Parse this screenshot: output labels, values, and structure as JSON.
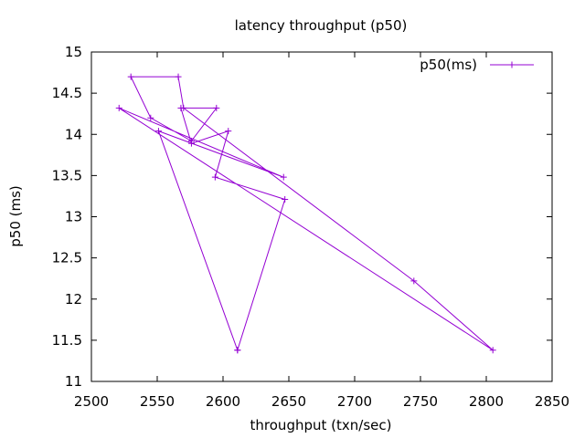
{
  "chart_data": {
    "type": "line",
    "title": "latency throughput (p50)",
    "xlabel": "throughput (txn/sec)",
    "ylabel": "p50 (ms)",
    "xlim": [
      2500,
      2850
    ],
    "ylim": [
      11,
      15
    ],
    "xticks": [
      "2500",
      "2550",
      "2600",
      "2650",
      "2700",
      "2750",
      "2800",
      "2850"
    ],
    "yticks": [
      "11",
      "11.5",
      "12",
      "12.5",
      "13",
      "13.5",
      "14",
      "14.5",
      "15"
    ],
    "xtick_values": [
      2500,
      2550,
      2600,
      2650,
      2700,
      2750,
      2800,
      2850
    ],
    "ytick_values": [
      11,
      11.5,
      12,
      12.5,
      13,
      13.5,
      14,
      14.5,
      15
    ],
    "grid": false,
    "legend_position": "top-right",
    "series": [
      {
        "name": "p50(ms)",
        "color": "#9400d3",
        "marker": "plus",
        "points": [
          [
            2611,
            11.38
          ],
          [
            2647,
            13.21
          ],
          [
            2594,
            13.48
          ],
          [
            2604,
            14.04
          ],
          [
            2576,
            13.89
          ],
          [
            2568,
            14.32
          ],
          [
            2595,
            14.32
          ],
          [
            2576,
            13.92
          ],
          [
            2545,
            14.2
          ],
          [
            2530,
            14.7
          ],
          [
            2566,
            14.7
          ],
          [
            2570,
            14.32
          ],
          [
            2745,
            12.22
          ],
          [
            2805,
            11.38
          ],
          [
            2521,
            14.32
          ],
          [
            2646,
            13.48
          ],
          [
            2551,
            14.04
          ],
          [
            2611,
            11.38
          ]
        ]
      }
    ]
  }
}
